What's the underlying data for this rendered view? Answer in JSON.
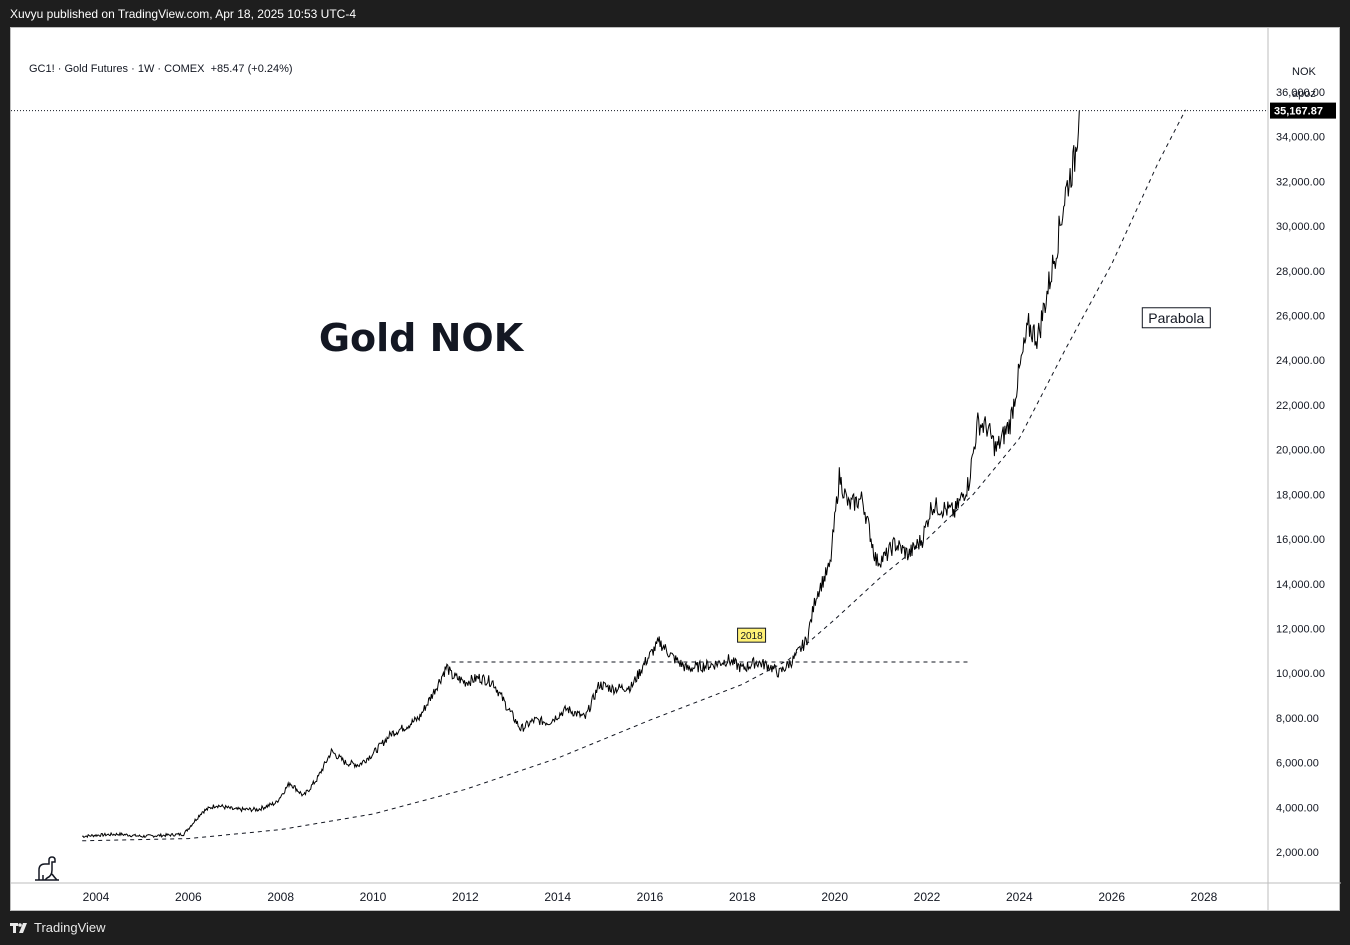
{
  "header": {
    "publisher_line": "Xuvyu published on TradingView.com, Apr 18, 2025 10:53 UTC-4"
  },
  "legend": {
    "symbol": "GC1!",
    "name": "Gold Futures",
    "interval": "1W",
    "exchange": "COMEX",
    "change": "+85.47",
    "change_pct": "(+0.24%)"
  },
  "price_scale": {
    "currency": "NOK",
    "mode": "apoz",
    "last_price_label": "35,167.87"
  },
  "footer": {
    "brand": "TradingView"
  },
  "colors": {
    "series": "#000000",
    "background": "#ffffff",
    "chrome": "#1e1e1e",
    "note_badge": "#fff176"
  },
  "icons": {
    "bottom_left": "dinosaur-icon",
    "brand": "tradingview-logo-icon"
  },
  "chart_data": {
    "type": "line",
    "title": "Gold NOK",
    "y_unit": "NOK",
    "ylim": [
      0,
      37000
    ],
    "xlim": [
      2003.1,
      2029.2
    ],
    "y_ticks": [
      "2,000.00",
      "4,000.00",
      "6,000.00",
      "8,000.00",
      "10,000.00",
      "12,000.00",
      "14,000.00",
      "16,000.00",
      "18,000.00",
      "20,000.00",
      "22,000.00",
      "24,000.00",
      "26,000.00",
      "28,000.00",
      "30,000.00",
      "32,000.00",
      "34,000.00",
      "36,000.00"
    ],
    "y_tick_values": [
      2000,
      4000,
      6000,
      8000,
      10000,
      12000,
      14000,
      16000,
      18000,
      20000,
      22000,
      24000,
      26000,
      28000,
      30000,
      32000,
      34000,
      36000
    ],
    "x_ticks": [
      "2004",
      "2006",
      "2008",
      "2010",
      "2012",
      "2014",
      "2016",
      "2018",
      "2020",
      "2022",
      "2024",
      "2026",
      "2028"
    ],
    "x_tick_values": [
      2004,
      2006,
      2008,
      2010,
      2012,
      2014,
      2016,
      2018,
      2020,
      2022,
      2024,
      2026,
      2028
    ],
    "grid": false,
    "series": [
      {
        "x": [
          2003.7,
          2004.0,
          2004.5,
          2005.0,
          2005.5,
          2005.9,
          2006.3,
          2006.6,
          2007.0,
          2007.5,
          2007.9,
          2008.2,
          2008.5,
          2008.8,
          2009.1,
          2009.4,
          2009.7,
          2010.0,
          2010.4,
          2010.7,
          2011.0,
          2011.3,
          2011.6,
          2011.7,
          2012.0,
          2012.3,
          2012.6,
          2012.9,
          2013.2,
          2013.5,
          2013.8,
          2014.2,
          2014.6,
          2014.9,
          2015.2,
          2015.6,
          2015.9,
          2016.2,
          2016.5,
          2016.8,
          2017.1,
          2017.4,
          2017.7,
          2018.0,
          2018.3,
          2018.6,
          2018.8,
          2019.1,
          2019.4,
          2019.6,
          2019.9,
          2020.1,
          2020.3,
          2020.6,
          2020.9,
          2021.1,
          2021.3,
          2021.6,
          2021.9,
          2022.1,
          2022.3,
          2022.6,
          2022.9,
          2023.1,
          2023.3,
          2023.5,
          2023.8,
          2024.0,
          2024.2,
          2024.4,
          2024.6,
          2024.8,
          2025.0,
          2025.2,
          2025.3
        ],
        "y": [
          2700,
          2750,
          2800,
          2700,
          2750,
          2800,
          3800,
          4100,
          3900,
          3900,
          4200,
          5100,
          4500,
          5300,
          6500,
          6000,
          5900,
          6400,
          7300,
          7600,
          8000,
          9100,
          10300,
          9900,
          9600,
          9800,
          9600,
          8500,
          7500,
          7900,
          7800,
          8400,
          8000,
          9500,
          9300,
          9400,
          10500,
          11400,
          10700,
          10200,
          10300,
          10400,
          10600,
          10200,
          10500,
          10300,
          10000,
          10600,
          11500,
          13500,
          14800,
          18800,
          17500,
          17800,
          15000,
          15200,
          15800,
          15300,
          16000,
          17500,
          17400,
          17200,
          18500,
          21200,
          21000,
          20000,
          21200,
          23500,
          25500,
          25000,
          27000,
          29000,
          31500,
          33000,
          35167.87
        ],
        "name": ""
      },
      {
        "x": [
          2003.7,
          2006.0,
          2008.0,
          2010.0,
          2012.0,
          2014.0,
          2016.0,
          2018.0,
          2019.0,
          2020.0,
          2021.0,
          2022.0,
          2023.0,
          2024.0,
          2025.0,
          2026.0,
          2027.0,
          2027.6
        ],
        "y": [
          2500,
          2600,
          3000,
          3700,
          4800,
          6200,
          7900,
          9500,
          10600,
          12400,
          14300,
          16000,
          18000,
          20500,
          24500,
          28300,
          32800,
          35200
        ],
        "name": "Parabola"
      },
      {
        "x": [
          2011.7,
          2022.9
        ],
        "y": [
          10500,
          10500
        ],
        "name": ""
      }
    ],
    "annotations": [
      {
        "text": "Parabola",
        "x": 2027.4,
        "y": 25900
      },
      {
        "text": "2018",
        "x": 2018.2,
        "y": 11700
      }
    ]
  }
}
